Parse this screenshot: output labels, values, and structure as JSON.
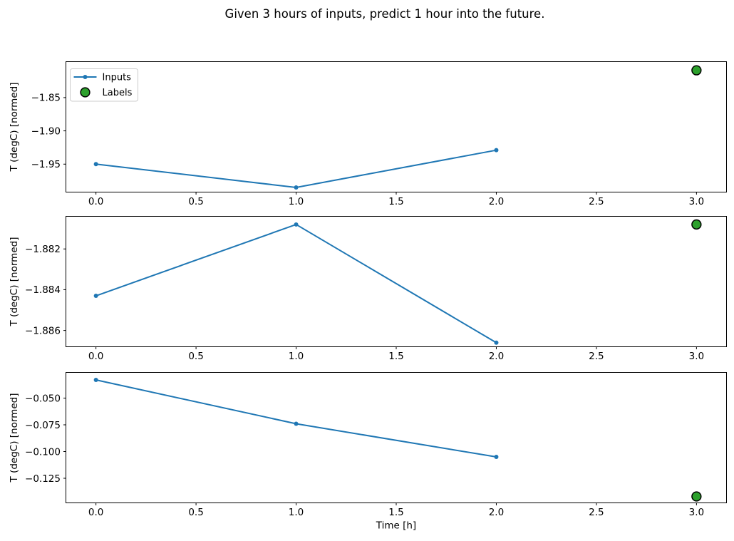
{
  "figure": {
    "title": "Given 3 hours of inputs, predict 1 hour into the future."
  },
  "xlabel": "Time [h]",
  "legend": {
    "position": "upper-left-of-first-subplot",
    "items": [
      {
        "label": "Inputs",
        "marker": "line-dot",
        "color": "#1f77b4"
      },
      {
        "label": "Labels",
        "marker": "circle",
        "fill": "#2ca02c",
        "edge": "#000000"
      }
    ]
  },
  "chart_data": [
    {
      "type": "line",
      "ylabel": "T (degC) [normed]",
      "xlabel": "",
      "x": [
        0.0,
        1.0,
        2.0
      ],
      "series": [
        {
          "name": "Inputs",
          "color": "#1f77b4",
          "values": [
            -1.95,
            -1.985,
            -1.929
          ]
        }
      ],
      "labels_scatter": {
        "name": "Labels",
        "x": 3.0,
        "y": -1.809,
        "fill": "#2ca02c",
        "edge": "#000000"
      },
      "xlim": [
        -0.15,
        3.15
      ],
      "ylim": [
        -1.992,
        -1.796
      ],
      "xticks": [
        0.0,
        0.5,
        1.0,
        1.5,
        2.0,
        2.5,
        3.0
      ],
      "yticks": [
        -1.85,
        -1.9,
        -1.95
      ],
      "xtick_decimals": 1,
      "ytick_decimals": 2,
      "grid": false,
      "legend_shown": true
    },
    {
      "type": "line",
      "ylabel": "T (degC) [normed]",
      "xlabel": "",
      "x": [
        0.0,
        1.0,
        2.0
      ],
      "series": [
        {
          "name": "Inputs",
          "color": "#1f77b4",
          "values": [
            -1.8843,
            -1.8808,
            -1.8866
          ]
        }
      ],
      "labels_scatter": {
        "name": "Labels",
        "x": 3.0,
        "y": -1.8808,
        "fill": "#2ca02c",
        "edge": "#000000"
      },
      "xlim": [
        -0.15,
        3.15
      ],
      "ylim": [
        -1.8868,
        -1.8804
      ],
      "xticks": [
        0.0,
        0.5,
        1.0,
        1.5,
        2.0,
        2.5,
        3.0
      ],
      "yticks": [
        -1.882,
        -1.884,
        -1.886
      ],
      "xtick_decimals": 1,
      "ytick_decimals": 3,
      "grid": false,
      "legend_shown": false
    },
    {
      "type": "line",
      "ylabel": "T (degC) [normed]",
      "xlabel": "Time [h]",
      "x": [
        0.0,
        1.0,
        2.0
      ],
      "series": [
        {
          "name": "Inputs",
          "color": "#1f77b4",
          "values": [
            -0.033,
            -0.074,
            -0.105
          ]
        }
      ],
      "labels_scatter": {
        "name": "Labels",
        "x": 3.0,
        "y": -0.142,
        "fill": "#2ca02c",
        "edge": "#000000"
      },
      "xlim": [
        -0.15,
        3.15
      ],
      "ylim": [
        -0.148,
        -0.026
      ],
      "xticks": [
        0.0,
        0.5,
        1.0,
        1.5,
        2.0,
        2.5,
        3.0
      ],
      "yticks": [
        -0.05,
        -0.075,
        -0.1,
        -0.125
      ],
      "xtick_decimals": 1,
      "ytick_decimals": 3,
      "grid": false,
      "legend_shown": false
    }
  ]
}
